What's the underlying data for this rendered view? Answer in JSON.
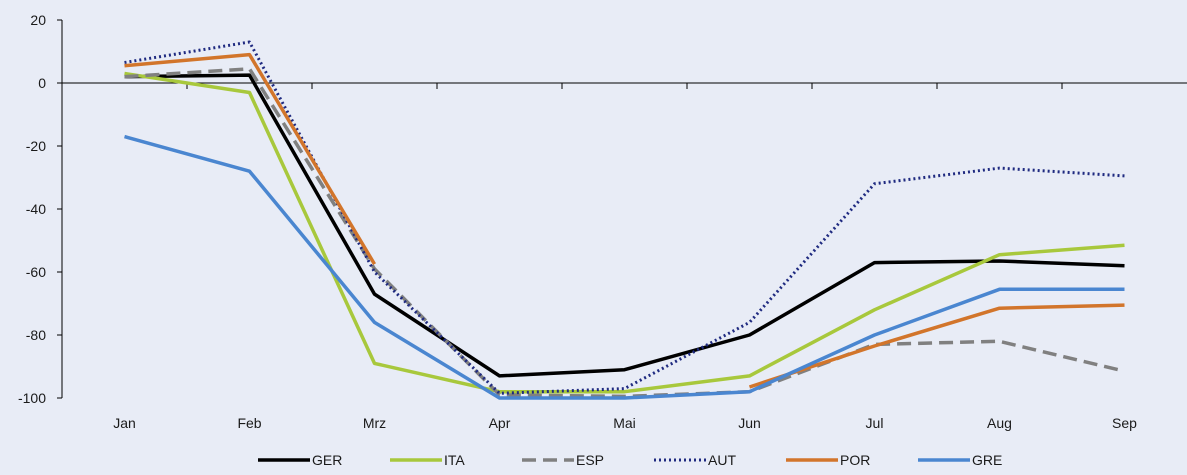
{
  "chart_data": {
    "type": "line",
    "categories": [
      "Jan",
      "Feb",
      "Mrz",
      "Apr",
      "Mai",
      "Jun",
      "Jul",
      "Aug",
      "Sep"
    ],
    "ylim": [
      -100,
      20
    ],
    "yticks": [
      20,
      0,
      -20,
      -40,
      -60,
      -80,
      -100
    ],
    "grid": false,
    "legend_position": "bottom",
    "series": [
      {
        "name": "GER",
        "color": "#000000",
        "style": "solid",
        "values": [
          2,
          2.5,
          -67,
          -93,
          -91,
          -80,
          -57,
          -56.5,
          -58
        ]
      },
      {
        "name": "ITA",
        "color": "#a8c83c",
        "style": "solid",
        "values": [
          3,
          -3,
          -89,
          -98,
          -98,
          -93,
          -72,
          -54.5,
          -51.5
        ]
      },
      {
        "name": "ESP",
        "color": "#808080",
        "style": "dashed",
        "values": [
          2,
          4.5,
          -59,
          -99,
          -99.5,
          -98,
          -83,
          -82,
          -91.5
        ]
      },
      {
        "name": "AUT",
        "color": "#1f2a80",
        "style": "dotted",
        "values": [
          6.5,
          13,
          -60,
          -98.5,
          -97,
          -76,
          -32,
          -27,
          -29.5
        ]
      },
      {
        "name": "POR",
        "color": "#d2752b",
        "style": "solid",
        "values": [
          5.5,
          9,
          -57.5,
          null,
          null,
          -96.5,
          -83.5,
          -71.5,
          -70.5
        ]
      },
      {
        "name": "GRE",
        "color": "#4a86d0",
        "style": "solid",
        "values": [
          -17,
          -28,
          -76,
          -100,
          -100,
          -98,
          -80,
          -65.5,
          -65.5
        ]
      }
    ]
  }
}
